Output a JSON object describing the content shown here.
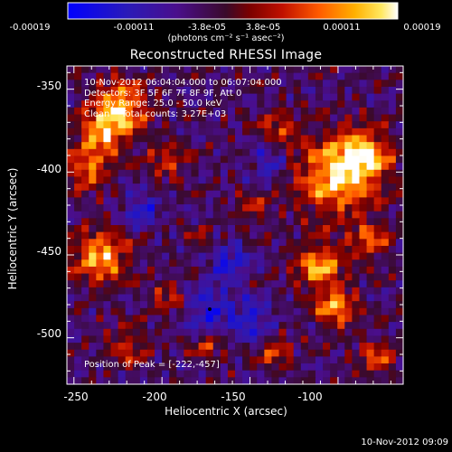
{
  "colorbar": {
    "ticks": [
      "-0.00019",
      "-0.00011",
      "-3.8e-05",
      "3.8e-05",
      "0.00011",
      "0.00019"
    ],
    "units": "(photons cm⁻² s⁻¹ asec⁻²)",
    "range": [
      -0.00019,
      0.00019
    ]
  },
  "plot": {
    "title": "Reconstructed RHESSI Image",
    "info_lines": [
      "10-Nov-2012 06:04:04.000 to 06:07:04.000",
      "Detectors: 3F 5F 6F 7F 8F 9F, Att 0",
      "Energy Range: 25.0 - 50.0 keV",
      "Clean    Total counts: 3.27E+03"
    ],
    "peak_label": "Position of Peak = [-222,-457]"
  },
  "axes": {
    "xlabel": "Heliocentric X (arcsec)",
    "ylabel": "Heliocentric Y (arcsec)",
    "xticks": [
      "-250",
      "-200",
      "-150",
      "-100"
    ],
    "yticks": [
      "-350",
      "-400",
      "-450",
      "-500"
    ],
    "xtick_values": [
      -250,
      -200,
      -150,
      -100
    ],
    "ytick_values": [
      -350,
      -400,
      -450,
      -500
    ],
    "xlim": [
      -254,
      -63
    ],
    "ylim": [
      -528,
      -336
    ]
  },
  "timestamp": "10-Nov-2012 09:09",
  "colors": {
    "background": "#000000",
    "axes": "#ffffff",
    "colormap": "blue-purple-red-orange-yellow-white"
  }
}
